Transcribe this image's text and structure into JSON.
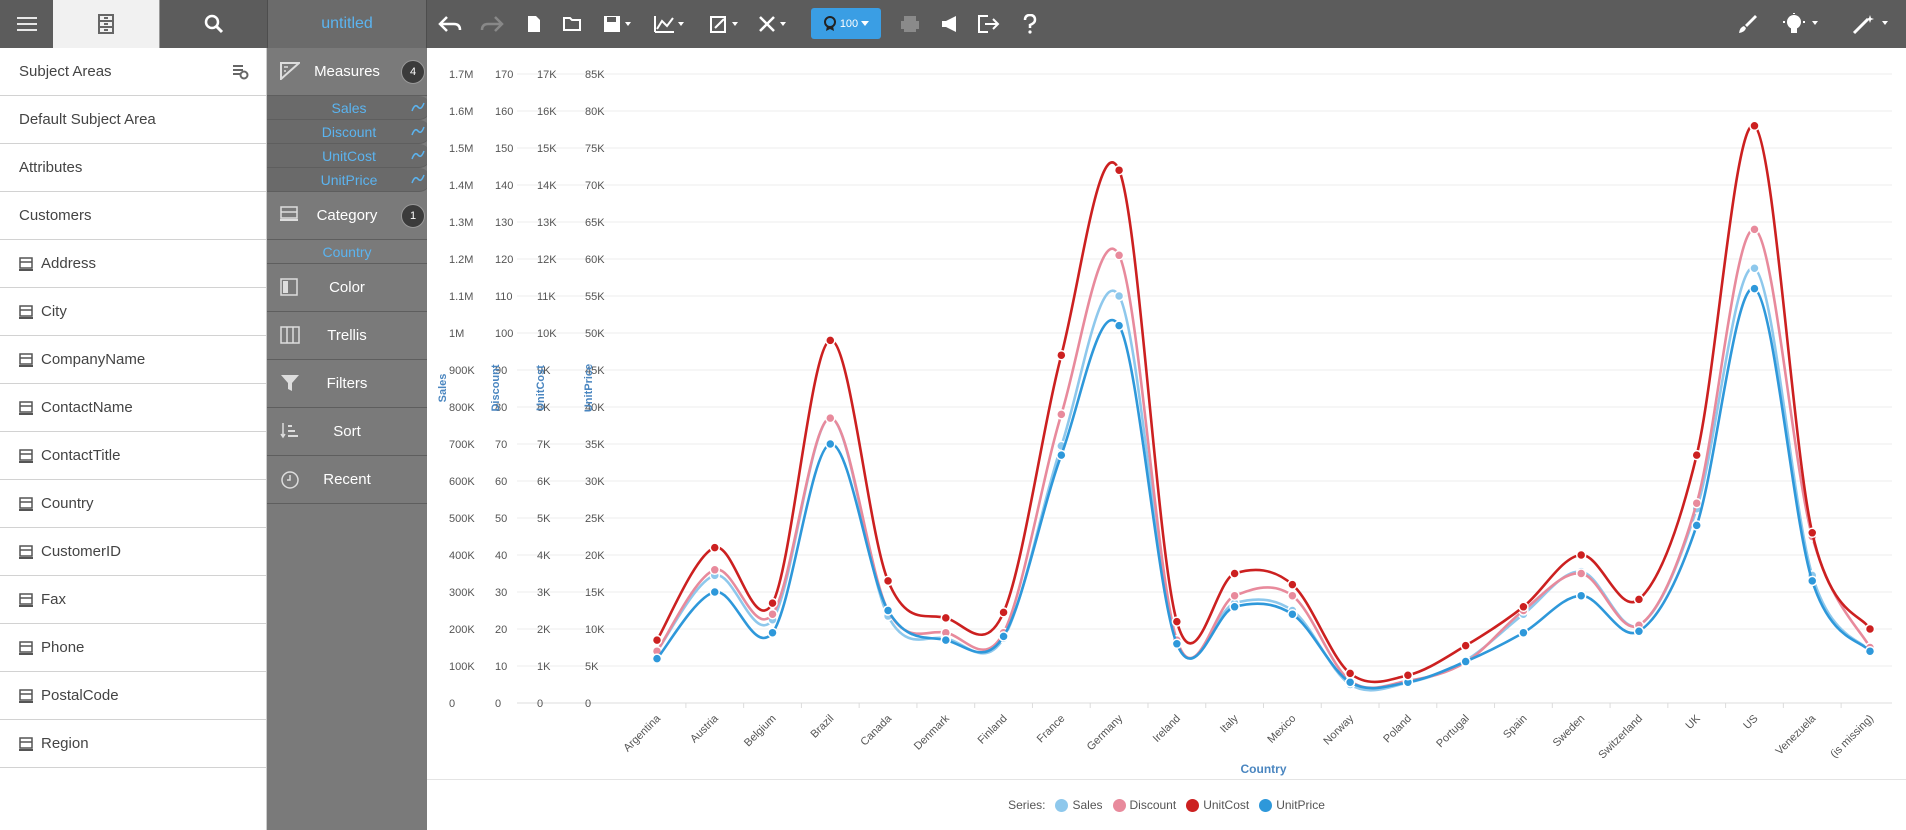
{
  "toolbar": {
    "title": "untitled",
    "badge": "100"
  },
  "left_panel": {
    "items": [
      {
        "label": "Subject Areas",
        "icon": "gear-icon"
      },
      {
        "label": "Default Subject Area"
      },
      {
        "label": "Attributes"
      },
      {
        "label": "Customers"
      },
      {
        "label": "Address",
        "icon": "field-icon"
      },
      {
        "label": "City",
        "icon": "field-icon"
      },
      {
        "label": "CompanyName",
        "icon": "field-icon"
      },
      {
        "label": "ContactName",
        "icon": "field-icon"
      },
      {
        "label": "ContactTitle",
        "icon": "field-icon"
      },
      {
        "label": "Country",
        "icon": "field-icon"
      },
      {
        "label": "CustomerID",
        "icon": "field-icon"
      },
      {
        "label": "Fax",
        "icon": "field-icon"
      },
      {
        "label": "Phone",
        "icon": "field-icon"
      },
      {
        "label": "PostalCode",
        "icon": "field-icon"
      },
      {
        "label": "Region",
        "icon": "field-icon"
      }
    ]
  },
  "middle_panel": {
    "measures": {
      "label": "Measures",
      "count": "4",
      "items": [
        "Sales",
        "Discount",
        "UnitCost",
        "UnitPrice"
      ]
    },
    "category": {
      "label": "Category",
      "count": "1",
      "items": [
        "Country"
      ]
    },
    "color": "Color",
    "trellis": "Trellis",
    "filters": "Filters",
    "sort": "Sort",
    "recent": "Recent"
  },
  "legend": {
    "prefix": "Series:"
  },
  "colors": {
    "Sales": "#8ec8ec",
    "Discount": "#e88a9c",
    "UnitCost": "#cc2020",
    "UnitPrice": "#2e98da",
    "accent": "#3a9ee4"
  },
  "chart_data": {
    "type": "line",
    "xlabel": "Country",
    "categories": [
      "Argentina",
      "Austria",
      "Belgium",
      "Brazil",
      "Canada",
      "Denmark",
      "Finland",
      "France",
      "Germany",
      "Ireland",
      "Italy",
      "Mexico",
      "Norway",
      "Poland",
      "Portugal",
      "Spain",
      "Sweden",
      "Switzerland",
      "UK",
      "US",
      "Venezuela",
      "(is missing)"
    ],
    "axes": [
      {
        "name": "Sales",
        "ticks": [
          "0",
          "100K",
          "200K",
          "300K",
          "400K",
          "500K",
          "600K",
          "700K",
          "800K",
          "900K",
          "1M",
          "1.1M",
          "1.2M",
          "1.3M",
          "1.4M",
          "1.5M",
          "1.6M",
          "1.7M"
        ],
        "max": 1700000
      },
      {
        "name": "Discount",
        "ticks": [
          "0",
          "10",
          "20",
          "30",
          "40",
          "50",
          "60",
          "70",
          "80",
          "90",
          "100",
          "110",
          "120",
          "130",
          "140",
          "150",
          "160",
          "170"
        ],
        "max": 170
      },
      {
        "name": "UnitCost",
        "ticks": [
          "0",
          "1K",
          "2K",
          "3K",
          "4K",
          "5K",
          "6K",
          "7K",
          "8K",
          "9K",
          "10K",
          "11K",
          "12K",
          "13K",
          "14K",
          "15K",
          "16K",
          "17K"
        ],
        "max": 17000
      },
      {
        "name": "UnitPrice",
        "ticks": [
          "0",
          "5K",
          "10K",
          "15K",
          "20K",
          "25K",
          "30K",
          "35K",
          "40K",
          "45K",
          "50K",
          "55K",
          "60K",
          "65K",
          "70K",
          "75K",
          "80K",
          "85K"
        ],
        "max": 85000
      }
    ],
    "series": [
      {
        "name": "Sales",
        "values": [
          140000,
          345000,
          225000,
          770000,
          235000,
          175000,
          175000,
          695000,
          1100000,
          165000,
          270000,
          250000,
          50000,
          55000,
          115000,
          240000,
          355000,
          210000,
          525000,
          1175000,
          345000,
          140000
        ]
      },
      {
        "name": "Discount",
        "values": [
          14,
          36,
          24,
          77,
          25,
          19,
          19,
          78,
          121,
          17,
          29,
          29,
          6,
          6,
          11,
          25,
          35,
          21,
          54,
          128,
          45,
          15
        ]
      },
      {
        "name": "UnitCost",
        "values": [
          1700,
          4200,
          2700,
          9800,
          3300,
          2300,
          2450,
          9400,
          14400,
          2200,
          3500,
          3200,
          800,
          750,
          1550,
          2600,
          4000,
          2800,
          6700,
          15600,
          4600,
          2000
        ]
      },
      {
        "name": "UnitPrice",
        "values": [
          6000,
          15000,
          9500,
          35000,
          12500,
          8500,
          9000,
          33500,
          51000,
          8000,
          13000,
          12000,
          2800,
          2800,
          5600,
          9500,
          14500,
          9700,
          24000,
          56000,
          16500,
          7000
        ]
      }
    ],
    "grid": true,
    "legend_position": "bottom"
  }
}
